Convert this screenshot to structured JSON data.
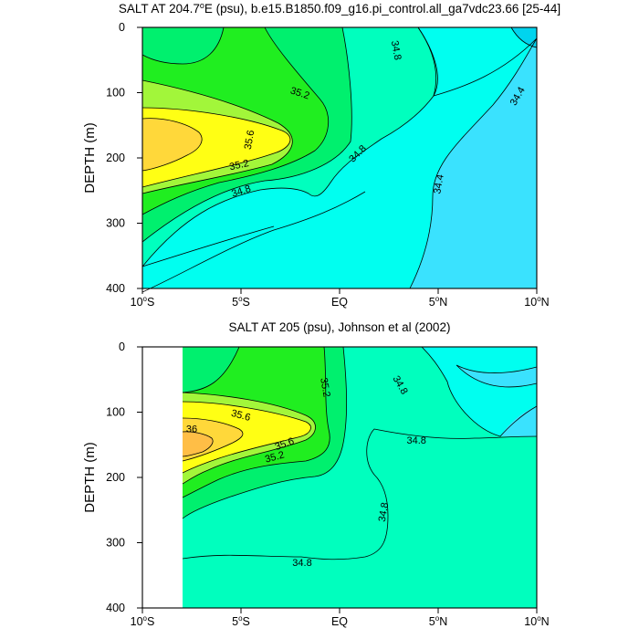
{
  "chart_data": [
    {
      "type": "contour",
      "title": "SALT AT 204.7°E (psu), b.e15.B1850.f09_g16.pi_control.all_ga7vdc23.66 [25-44]",
      "title_parts": {
        "lead": "SALT AT 204.7",
        "deg": "o",
        "tail": "E (psu), b.e15.B1850.f09_g16.pi_control.all_ga7vdc23.66 [25-44]"
      },
      "ylabel": "DEPTH (m)",
      "xlim": [
        -10,
        10
      ],
      "ylim": [
        400,
        0
      ],
      "x_ticks": [
        {
          "value": -10,
          "num": "10",
          "hemi": "S"
        },
        {
          "value": -5,
          "num": "5",
          "hemi": "S"
        },
        {
          "value": 0,
          "num": "EQ",
          "hemi": ""
        },
        {
          "value": 5,
          "num": "5",
          "hemi": "N"
        },
        {
          "value": 10,
          "num": "10",
          "hemi": "N"
        }
      ],
      "y_ticks": [
        "0",
        "100",
        "200",
        "300",
        "400"
      ],
      "contour_labels": [
        {
          "text": "34.8",
          "lat": 2.9,
          "depth": 35,
          "angle": 80
        },
        {
          "text": "35.2",
          "lat": -2.0,
          "depth": 100,
          "angle": 18
        },
        {
          "text": "34.4",
          "lat": 9.0,
          "depth": 105,
          "angle": -60
        },
        {
          "text": "35.6",
          "lat": -4.6,
          "depth": 172,
          "angle": -80
        },
        {
          "text": "34.8",
          "lat": 0.9,
          "depth": 193,
          "angle": -45
        },
        {
          "text": "35.2",
          "lat": -5.1,
          "depth": 210,
          "angle": -12
        },
        {
          "text": "34.8",
          "lat": -5.0,
          "depth": 250,
          "angle": -18
        },
        {
          "text": "34.4",
          "lat": 5.0,
          "depth": 240,
          "angle": -80
        }
      ]
    },
    {
      "type": "contour",
      "title": "SALT AT 205 (psu), Johnson et al (2002)",
      "ylabel": "DEPTH (m)",
      "xlim": [
        -10,
        10
      ],
      "ylim": [
        400,
        0
      ],
      "data_xmin": -8,
      "x_ticks": [
        {
          "value": -10,
          "num": "10",
          "hemi": "S"
        },
        {
          "value": -5,
          "num": "5",
          "hemi": "S"
        },
        {
          "value": 0,
          "num": "EQ",
          "hemi": ""
        },
        {
          "value": 5,
          "num": "5",
          "hemi": "N"
        },
        {
          "value": 10,
          "num": "10",
          "hemi": "N"
        }
      ],
      "y_ticks": [
        "0",
        "100",
        "200",
        "300",
        "400"
      ],
      "contour_labels": [
        {
          "text": "35.2",
          "lat": -0.7,
          "depth": 62,
          "angle": 80
        },
        {
          "text": "34.8",
          "lat": 3.1,
          "depth": 58,
          "angle": 60
        },
        {
          "text": "35.6",
          "lat": -5.0,
          "depth": 104,
          "angle": 15
        },
        {
          "text": "36",
          "lat": -7.5,
          "depth": 125,
          "angle": 0
        },
        {
          "text": "35.6",
          "lat": -2.8,
          "depth": 148,
          "angle": -20
        },
        {
          "text": "34.8",
          "lat": 3.9,
          "depth": 143,
          "angle": 0
        },
        {
          "text": "35.2",
          "lat": -3.3,
          "depth": 168,
          "angle": -15
        },
        {
          "text": "34.8",
          "lat": 2.2,
          "depth": 253,
          "angle": -80
        },
        {
          "text": "34.8",
          "lat": -1.9,
          "depth": 330,
          "angle": 0
        }
      ]
    }
  ],
  "colors": {
    "lt_34_4": "#3ae2fe",
    "c34_4_34_8": "#00fff0",
    "c34_8_35_0": "#00ffbe",
    "c35_0_35_2": "#00f06e",
    "c35_2_35_4": "#20ee20",
    "c35_4_35_6": "#a2f63a",
    "c35_6_35_8": "#ffff14",
    "c35_8_36_0": "#ffd83a",
    "gt_36_0": "#ffbe46",
    "deep_cyan": "#00d4ee"
  }
}
